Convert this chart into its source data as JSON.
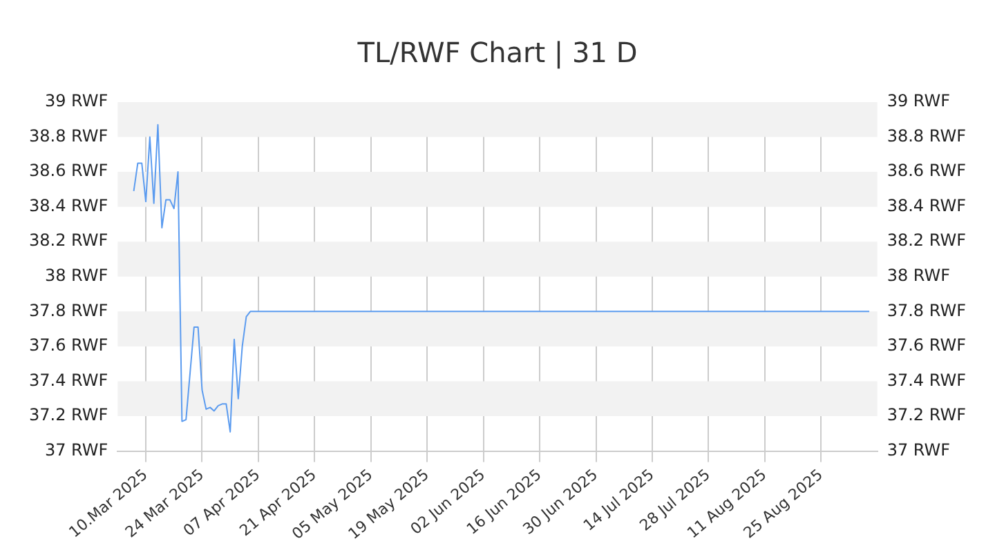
{
  "chart_data": {
    "type": "line",
    "title": "TL/RWF Chart | 31 D",
    "x": [
      "2025-03-07",
      "2025-03-08",
      "2025-03-09",
      "2025-03-10",
      "2025-03-11",
      "2025-03-12",
      "2025-03-13",
      "2025-03-14",
      "2025-03-15",
      "2025-03-16",
      "2025-03-17",
      "2025-03-18",
      "2025-03-19",
      "2025-03-20",
      "2025-03-22",
      "2025-03-23",
      "2025-03-24",
      "2025-03-25",
      "2025-03-26",
      "2025-03-27",
      "2025-03-28",
      "2025-03-29",
      "2025-03-30",
      "2025-03-31",
      "2025-04-01",
      "2025-04-02",
      "2025-04-03",
      "2025-04-04",
      "2025-04-05",
      "2025-09-06"
    ],
    "series": [
      {
        "color": "#5b9bef",
        "values": [
          38.49,
          38.65,
          38.65,
          38.43,
          38.8,
          38.42,
          38.87,
          38.28,
          38.44,
          38.44,
          38.39,
          38.6,
          37.17,
          37.18,
          37.71,
          37.71,
          37.35,
          37.24,
          37.25,
          37.23,
          37.26,
          37.27,
          37.27,
          37.11,
          37.64,
          37.3,
          37.6,
          37.77,
          37.8,
          37.8
        ]
      }
    ],
    "xlim": [
      "2025-03-03",
      "2025-09-08"
    ],
    "xticks": [
      {
        "value": "2025-03-10",
        "label": "10.Mar 2025"
      },
      {
        "value": "2025-03-24",
        "label": "24 Mar 2025"
      },
      {
        "value": "2025-04-07",
        "label": "07 Apr 2025"
      },
      {
        "value": "2025-04-21",
        "label": "21 Apr 2025"
      },
      {
        "value": "2025-05-05",
        "label": "05 May 2025"
      },
      {
        "value": "2025-05-19",
        "label": "19 May 2025"
      },
      {
        "value": "2025-06-02",
        "label": "02 Jun 2025"
      },
      {
        "value": "2025-06-16",
        "label": "16 Jun 2025"
      },
      {
        "value": "2025-06-30",
        "label": "30 Jun 2025"
      },
      {
        "value": "2025-07-14",
        "label": "14 Jul 2025"
      },
      {
        "value": "2025-07-28",
        "label": "28 Jul 2025"
      },
      {
        "value": "2025-08-11",
        "label": "11 Aug 2025"
      },
      {
        "value": "2025-08-25",
        "label": "25 Aug 2025"
      }
    ],
    "ylim": [
      37,
      39
    ],
    "yticks": [
      {
        "value": 37,
        "label": "37 RWF"
      },
      {
        "value": 37.2,
        "label": "37.2 RWF"
      },
      {
        "value": 37.4,
        "label": "37.4 RWF"
      },
      {
        "value": 37.6,
        "label": "37.6 RWF"
      },
      {
        "value": 37.8,
        "label": "37.8 RWF"
      },
      {
        "value": 38,
        "label": "38 RWF"
      },
      {
        "value": 38.2,
        "label": "38.2 RWF"
      },
      {
        "value": 38.4,
        "label": "38.4 RWF"
      },
      {
        "value": 38.6,
        "label": "38.6 RWF"
      },
      {
        "value": 38.8,
        "label": "38.8 RWF"
      },
      {
        "value": 39,
        "label": "39 RWF"
      }
    ],
    "y2lim": [
      37,
      39
    ],
    "y2ticks": [
      {
        "value": 37,
        "label": "37 RWF"
      },
      {
        "value": 37.2,
        "label": "37.2 RWF"
      },
      {
        "value": 37.4,
        "label": "37.4 RWF"
      },
      {
        "value": 37.6,
        "label": "37.6 RWF"
      },
      {
        "value": 37.8,
        "label": "37.8 RWF"
      },
      {
        "value": 38,
        "label": "38 RWF"
      },
      {
        "value": 38.2,
        "label": "38.2 RWF"
      },
      {
        "value": 38.4,
        "label": "38.4 RWF"
      },
      {
        "value": 38.6,
        "label": "38.6 RWF"
      },
      {
        "value": 38.8,
        "label": "38.8 RWF"
      },
      {
        "value": 39,
        "label": "39 RWF"
      }
    ],
    "grid": true,
    "legend": false,
    "marker": "none",
    "line_style": "solid"
  }
}
